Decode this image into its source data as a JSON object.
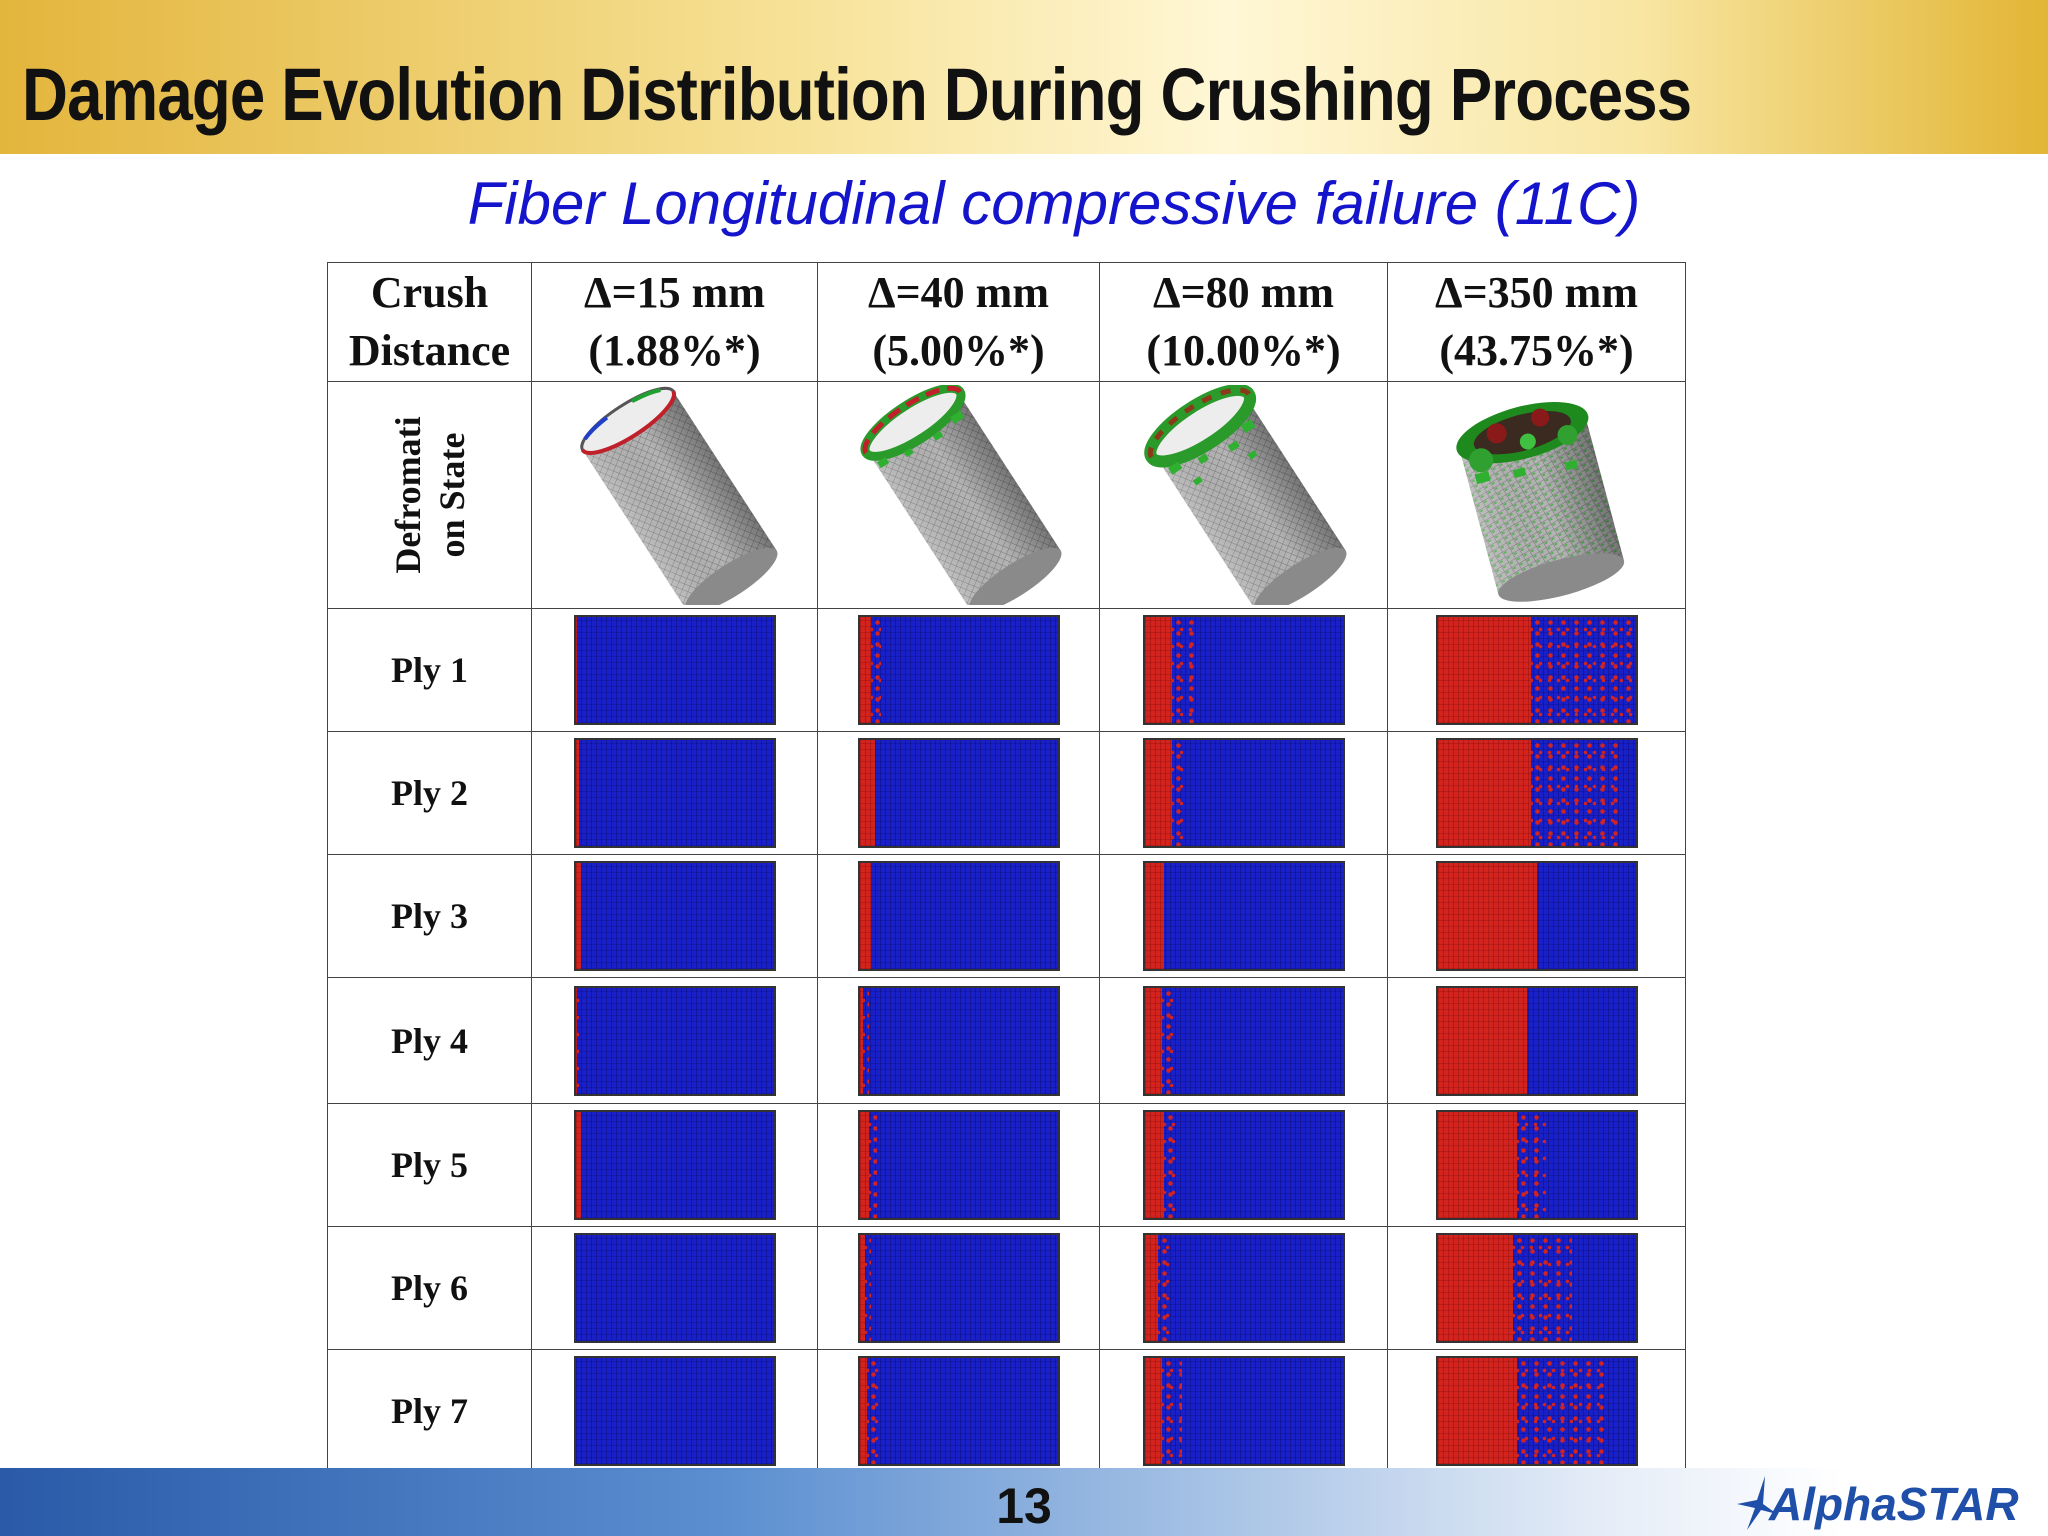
{
  "header": {
    "title": "Damage Evolution Distribution During Crushing Process",
    "subtitle": "Fiber Longitudinal compressive failure (11C)"
  },
  "table": {
    "corner": [
      "Crush",
      "Distance"
    ],
    "columns": [
      {
        "line1": "Δ=15 mm",
        "line2": "(1.88%*)"
      },
      {
        "line1": "Δ=40 mm",
        "line2": "(5.00%*)"
      },
      {
        "line1": "Δ=80 mm",
        "line2": "(10.00%*)"
      },
      {
        "line1": "Δ=350 mm",
        "line2": "(43.75%*)"
      }
    ],
    "deformation_label": [
      "Defromati",
      "on State"
    ],
    "plies": [
      {
        "label": "Ply 1",
        "damage": [
          0.01,
          0.06,
          0.14,
          0.47
        ],
        "scatter": [
          0,
          0.05,
          0.12,
          0.53
        ]
      },
      {
        "label": "Ply 2",
        "damage": [
          0.02,
          0.08,
          0.14,
          0.47
        ],
        "scatter": [
          0,
          0,
          0.06,
          0.45
        ]
      },
      {
        "label": "Ply 3",
        "damage": [
          0.03,
          0.06,
          0.1,
          0.5
        ],
        "scatter": [
          0,
          0,
          0,
          0
        ]
      },
      {
        "label": "Ply 4",
        "damage": [
          0.01,
          0.02,
          0.09,
          0.45
        ],
        "scatter": [
          0.02,
          0.03,
          0.06,
          0
        ]
      },
      {
        "label": "Ply 5",
        "damage": [
          0.03,
          0.05,
          0.1,
          0.4
        ],
        "scatter": [
          0,
          0.04,
          0.06,
          0.15
        ]
      },
      {
        "label": "Ply 6",
        "damage": [
          0.0,
          0.03,
          0.07,
          0.38
        ],
        "scatter": [
          0,
          0.03,
          0.06,
          0.3
        ]
      },
      {
        "label": "Ply 7",
        "damage": [
          0.0,
          0.04,
          0.09,
          0.4
        ],
        "scatter": [
          0,
          0.08,
          0.1,
          0.45
        ]
      }
    ]
  },
  "colors": {
    "damaged": "#d2231e",
    "undamaged": "#1a20c8",
    "title_text": "#111111",
    "subtitle_text": "#1414cc",
    "logo": "#1f4fa8"
  },
  "footer": {
    "page_number": "13",
    "logo": "AlphaSTAR"
  }
}
